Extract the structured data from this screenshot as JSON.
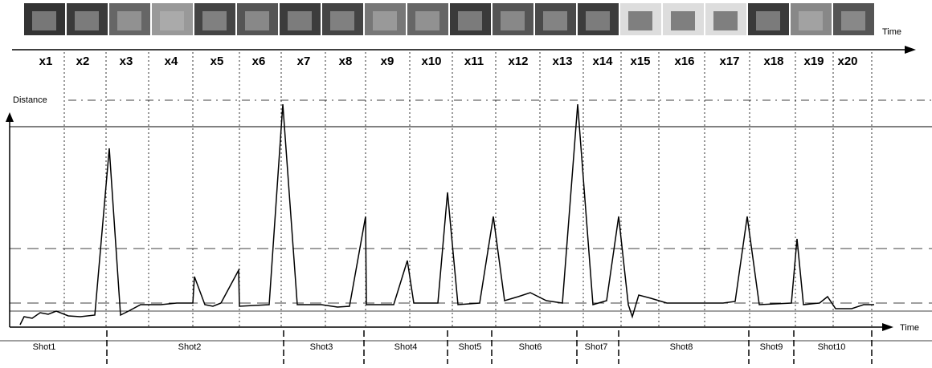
{
  "frames": [
    "x1",
    "x2",
    "x3",
    "x4",
    "x5",
    "x6",
    "x7",
    "x8",
    "x9",
    "x10",
    "x11",
    "x12",
    "x13",
    "x14",
    "x15",
    "x16",
    "x17",
    "x18",
    "x19",
    "x20"
  ],
  "top_axis_label": "Time",
  "y_axis_label": "Distance",
  "bottom_axis_label": "Time",
  "shots": [
    "Shot1",
    "Shot2",
    "Shot3",
    "Shot4",
    "Shot5",
    "Shot6",
    "Shot7",
    "Shot8",
    "Shot9",
    "Shot10"
  ]
}
